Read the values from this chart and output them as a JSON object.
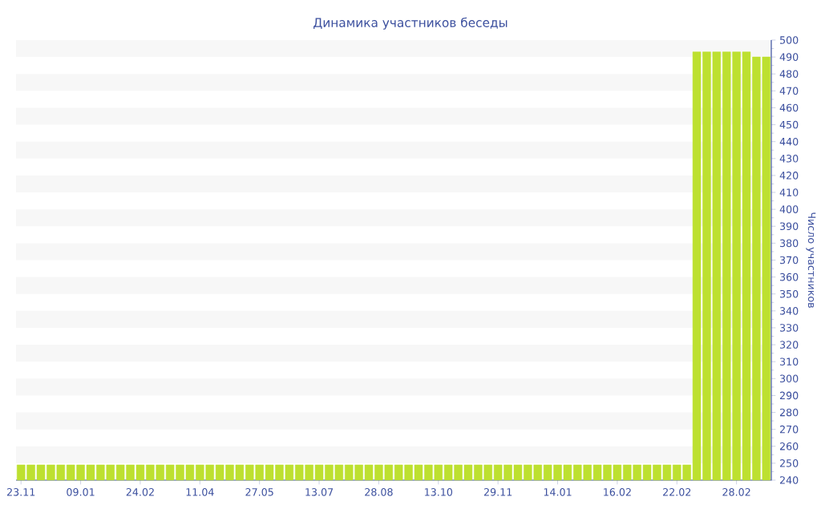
{
  "chart_data": {
    "title": "Динамика участников беседы",
    "ylabel": "Число участников",
    "categories": [
      "23.11",
      null,
      null,
      null,
      null,
      null,
      "09.01",
      null,
      null,
      null,
      null,
      null,
      "24.02",
      null,
      null,
      null,
      null,
      null,
      "11.04",
      null,
      null,
      null,
      null,
      null,
      "27.05",
      null,
      null,
      null,
      null,
      null,
      "13.07",
      null,
      null,
      null,
      null,
      null,
      "28.08",
      null,
      null,
      null,
      null,
      null,
      "13.10",
      null,
      null,
      null,
      null,
      null,
      "29.11",
      null,
      null,
      null,
      null,
      null,
      "14.01",
      null,
      null,
      null,
      null,
      null,
      "16.02",
      null,
      null,
      null,
      null,
      null,
      "22.02",
      null,
      null,
      null,
      null,
      null,
      "28.02",
      null,
      null,
      null
    ],
    "values": [
      249,
      249,
      249,
      249,
      249,
      249,
      249,
      249,
      249,
      249,
      249,
      249,
      249,
      249,
      249,
      249,
      249,
      249,
      249,
      249,
      249,
      249,
      249,
      249,
      249,
      249,
      249,
      249,
      249,
      249,
      249,
      249,
      249,
      249,
      249,
      249,
      249,
      249,
      249,
      249,
      249,
      249,
      249,
      249,
      249,
      249,
      249,
      249,
      249,
      249,
      249,
      249,
      249,
      249,
      249,
      249,
      249,
      249,
      249,
      249,
      249,
      249,
      249,
      249,
      249,
      249,
      249,
      249,
      493,
      493,
      493,
      493,
      493,
      493,
      490,
      490
    ],
    "color": "#bde030",
    "ylim": [
      240,
      500
    ],
    "yticks": [
      240,
      250,
      260,
      270,
      280,
      290,
      300,
      310,
      320,
      330,
      340,
      350,
      360,
      370,
      380,
      390,
      400,
      410,
      420,
      430,
      440,
      450,
      460,
      470,
      480,
      490,
      500
    ],
    "type": "bar"
  }
}
